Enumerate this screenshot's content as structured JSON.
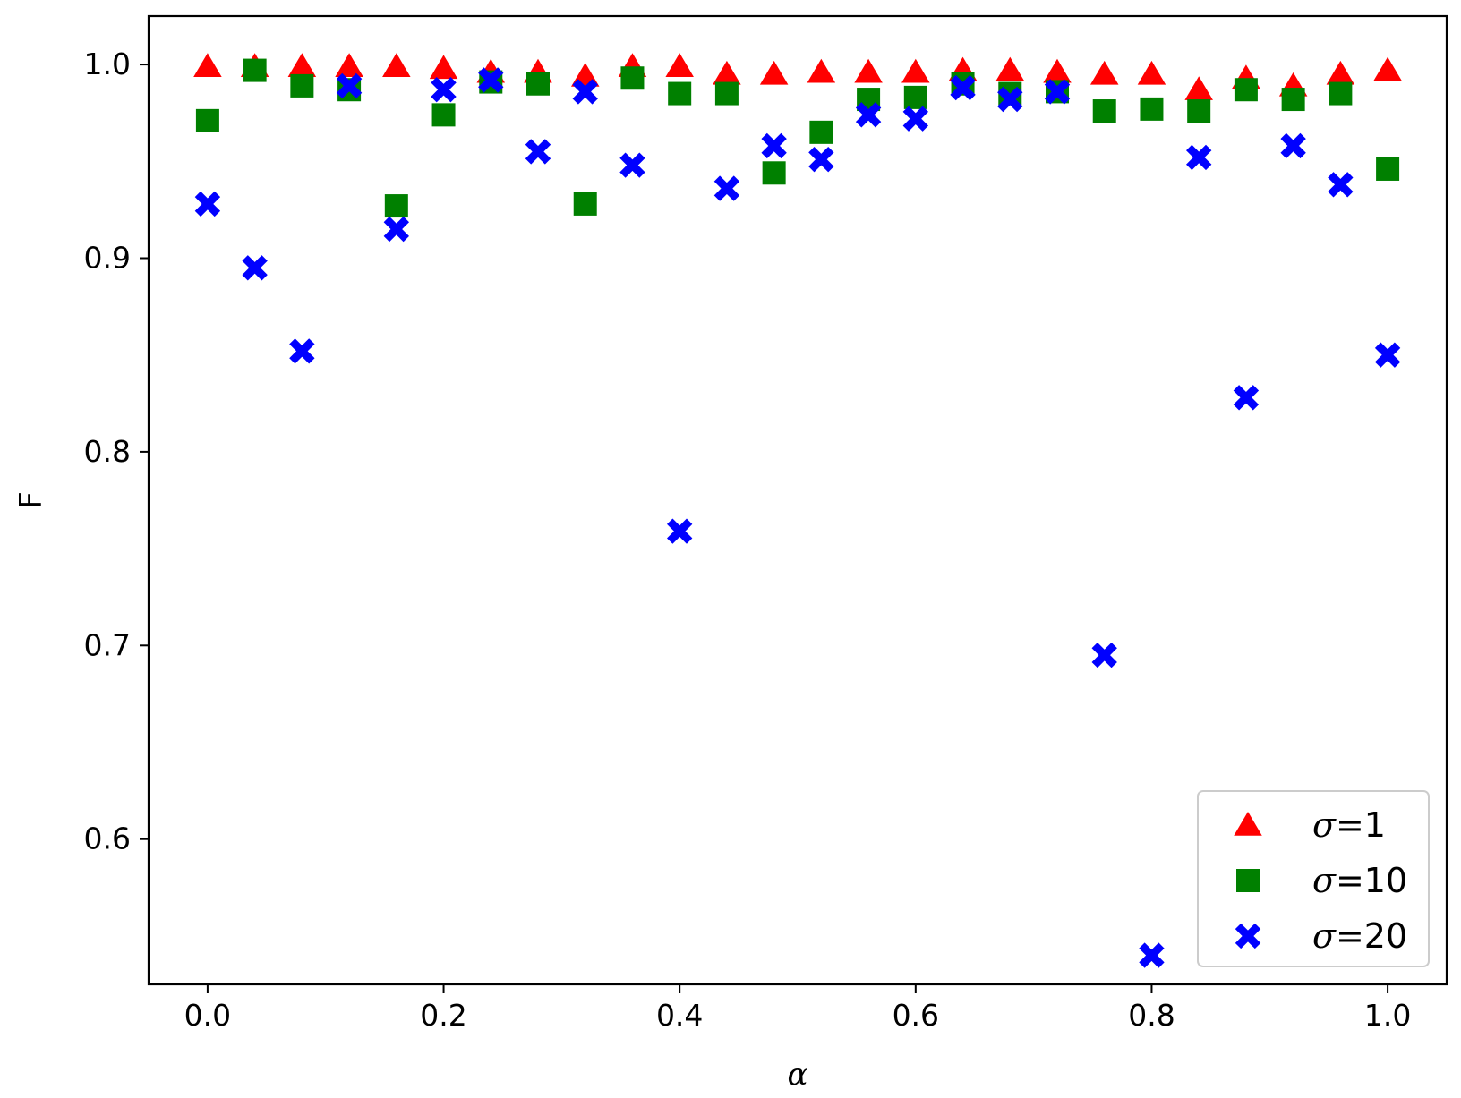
{
  "chart_data": {
    "type": "scatter",
    "xlabel": "α",
    "ylabel": "F",
    "xlim": [
      -0.05,
      1.05
    ],
    "ylim": [
      0.525,
      1.025
    ],
    "xticks": [
      0.0,
      0.2,
      0.4,
      0.6,
      0.8,
      1.0
    ],
    "xtick_labels": [
      "0.0",
      "0.2",
      "0.4",
      "0.6",
      "0.8",
      "1.0"
    ],
    "yticks": [
      0.6,
      0.7,
      0.8,
      0.9,
      1.0
    ],
    "ytick_labels": [
      "0.6",
      "0.7",
      "0.8",
      "0.9",
      "1.0"
    ],
    "grid": false,
    "legend_position": "lower-right",
    "x": [
      0.0,
      0.04,
      0.08,
      0.12,
      0.16,
      0.2,
      0.24,
      0.28,
      0.32,
      0.36,
      0.4,
      0.44,
      0.48,
      0.52,
      0.56,
      0.6,
      0.64,
      0.68,
      0.72,
      0.76,
      0.8,
      0.84,
      0.88,
      0.92,
      0.96,
      1.0
    ],
    "series": [
      {
        "name": "σ=1",
        "legend_symbol": "σ",
        "legend_value": "=1",
        "marker": "triangle",
        "color": "#ff0000",
        "values": [
          0.999,
          0.999,
          0.999,
          0.999,
          0.999,
          0.998,
          0.996,
          0.996,
          0.994,
          0.999,
          0.999,
          0.995,
          0.995,
          0.996,
          0.996,
          0.996,
          0.997,
          0.997,
          0.996,
          0.995,
          0.995,
          0.987,
          0.993,
          0.989,
          0.995,
          0.997
        ]
      },
      {
        "name": "σ=10",
        "legend_symbol": "σ",
        "legend_value": "=10",
        "marker": "square",
        "color": "#008000",
        "values": [
          0.971,
          0.997,
          0.989,
          0.987,
          0.927,
          0.974,
          0.991,
          0.99,
          0.928,
          0.993,
          0.985,
          0.985,
          0.944,
          0.965,
          0.982,
          0.983,
          0.99,
          0.985,
          0.986,
          0.976,
          0.977,
          0.976,
          0.987,
          0.982,
          0.985,
          0.946
        ]
      },
      {
        "name": "σ=20",
        "legend_symbol": "σ",
        "legend_value": "=20",
        "marker": "x",
        "color": "#0000ff",
        "values": [
          0.928,
          0.895,
          0.852,
          0.989,
          0.915,
          0.987,
          0.992,
          0.955,
          0.986,
          0.948,
          0.759,
          0.936,
          0.958,
          0.951,
          0.974,
          0.972,
          0.988,
          0.982,
          0.986,
          0.695,
          0.54,
          0.952,
          0.828,
          0.958,
          0.938,
          0.85
        ]
      }
    ]
  }
}
